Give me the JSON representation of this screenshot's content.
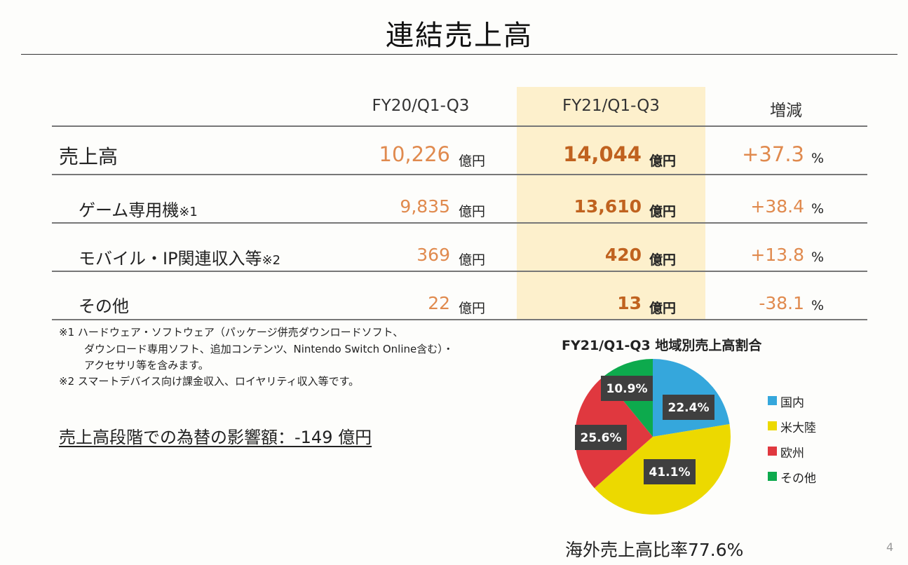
{
  "page": {
    "title": "連結売上高",
    "page_number": "4"
  },
  "table": {
    "headers": [
      "FY20/Q1-Q3",
      "FY21/Q1-Q3",
      "増減"
    ],
    "rows": [
      {
        "label": "売上高",
        "note": "",
        "fy20": "10,226",
        "fy20_unit": "億円",
        "fy21": "14,044",
        "fy21_unit": "億円",
        "change": "+37.3",
        "change_unit": "%"
      },
      {
        "label": "ゲーム専用機",
        "note": "※1",
        "fy20": "9,835",
        "fy20_unit": "億円",
        "fy21": "13,610",
        "fy21_unit": "億円",
        "change": "+38.4",
        "change_unit": "%"
      },
      {
        "label": "モバイル・IP関連収入等",
        "note": "※2",
        "fy20": "369",
        "fy20_unit": "億円",
        "fy21": "420",
        "fy21_unit": "億円",
        "change": "+13.8",
        "change_unit": "%"
      },
      {
        "label": "その他",
        "note": "",
        "fy20": "22",
        "fy20_unit": "億円",
        "fy21": "13",
        "fy21_unit": "億円",
        "change": "-38.1",
        "change_unit": "%"
      }
    ]
  },
  "footnotes": [
    "※1 ハードウェア・ソフトウェア（パッケージ併売ダウンロードソフト、",
    "ダウンロード専用ソフト、追加コンテンツ、Nintendo Switch Online含む）・",
    "アクセサリ等を含みます。",
    "※2 スマートデバイス向け課金収入、ロイヤリティ収入等です。"
  ],
  "fx_impact": "売上高段階での為替の影響額：-149 億円",
  "overseas_ratio": "海外売上高比率77.6%",
  "colors": {
    "highlight_column": "#fdf0cc",
    "value_orange": "#e08a4e",
    "value_bold": "#c0621f"
  },
  "chart_data": {
    "type": "pie",
    "title": "FY21/Q1-Q3 地域別売上高割合",
    "legend_position": "right",
    "categories": [
      "国内",
      "米大陸",
      "欧州",
      "その他"
    ],
    "values": [
      22.4,
      41.1,
      25.6,
      10.9
    ],
    "labels": [
      "22.4%",
      "41.1%",
      "25.6%",
      "10.9%"
    ],
    "colors": [
      "#35a7dc",
      "#ecd900",
      "#e0383f",
      "#0daa4d"
    ]
  }
}
